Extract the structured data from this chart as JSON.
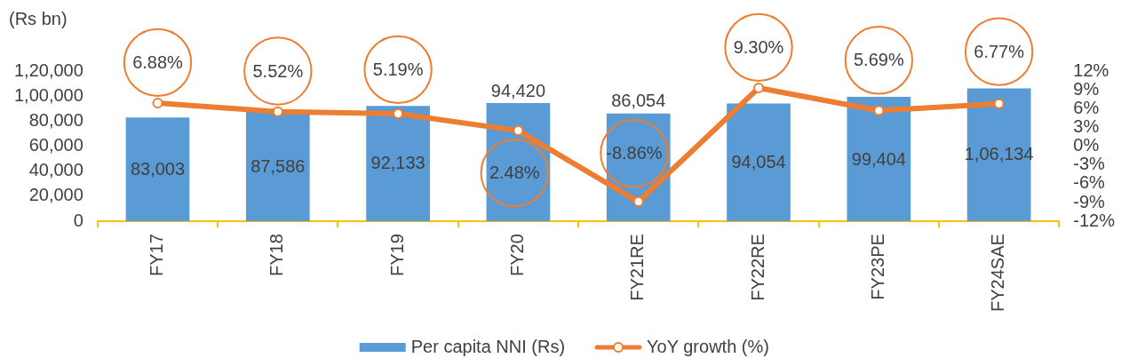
{
  "chart_data": {
    "type": "bar",
    "ylabel": "(Rs bn)",
    "categories": [
      "FY17",
      "FY18",
      "FY19",
      "FY20",
      "FY21RE",
      "FY22RE",
      "FY23PE",
      "FY24SAE"
    ],
    "series": [
      {
        "name": "Per capita NNI (Rs)",
        "color": "#5b9bd5",
        "values": [
          83003,
          87586,
          92133,
          94420,
          86054,
          94054,
          99404,
          106134
        ],
        "value_labels": [
          "83,003",
          "87,586",
          "92,133",
          "94,420",
          "86,054",
          "94,054",
          "99,404",
          "1,06,134"
        ]
      },
      {
        "name": "YoY growth (%)",
        "type": "line",
        "axis": "y2",
        "color": "#ed7d31",
        "marker": "circle",
        "values": [
          6.88,
          5.52,
          5.19,
          2.48,
          -8.86,
          9.3,
          5.69,
          6.77
        ],
        "value_labels": [
          "6.88%",
          "5.52%",
          "5.19%",
          "2.48%",
          "-8.86%",
          "9.30%",
          "5.69%",
          "6.77%"
        ]
      }
    ],
    "ylim": [
      0,
      120000
    ],
    "yticks": [
      0,
      {
        "value": 20000,
        "label": "20,000"
      },
      {
        "value": 40000,
        "label": "40,000"
      },
      {
        "value": 60000,
        "label": "60,000"
      },
      {
        "value": 80000,
        "label": "80,000"
      },
      {
        "value": 100000,
        "label": "1,00,000"
      },
      {
        "value": 120000,
        "label": "1,20,000"
      }
    ],
    "y2lim": [
      -12,
      12
    ],
    "y2ticks": [
      {
        "value": -12,
        "label": "-12%"
      },
      {
        "value": -9,
        "label": "-9%"
      },
      {
        "value": -6,
        "label": "-6%"
      },
      {
        "value": -3,
        "label": "-3%"
      },
      {
        "value": 0,
        "label": "0%"
      },
      {
        "value": 3,
        "label": "3%"
      },
      {
        "value": 6,
        "label": "6%"
      },
      {
        "value": 9,
        "label": "9%"
      },
      {
        "value": 12,
        "label": "12%"
      }
    ],
    "legend": "bottom"
  }
}
